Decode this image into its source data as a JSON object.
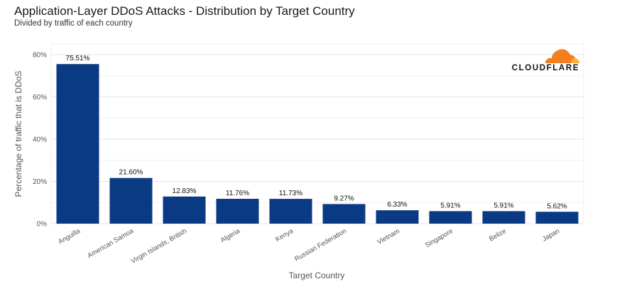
{
  "chart_data": {
    "type": "bar",
    "title": "Application-Layer DDoS Attacks - Distribution by Target Country",
    "subtitle": "Divided by traffic of each country",
    "xlabel": "Target Country",
    "ylabel": "Percentage of traffic that is DDoS",
    "ylim": [
      0,
      85
    ],
    "yticks": [
      0,
      20,
      40,
      60,
      80
    ],
    "ytick_labels": [
      "0%",
      "20%",
      "40%",
      "60%",
      "80%"
    ],
    "grid": true,
    "categories": [
      "Anguilla",
      "American Samoa",
      "Virgin Islands, British",
      "Algeria",
      "Kenya",
      "Russian Federation",
      "Vietnam",
      "Singapore",
      "Belize",
      "Japan"
    ],
    "values": [
      75.51,
      21.6,
      12.83,
      11.76,
      11.73,
      9.27,
      6.33,
      5.91,
      5.91,
      5.62
    ],
    "value_labels": [
      "75.51%",
      "21.60%",
      "12.83%",
      "11.76%",
      "11.73%",
      "9.27%",
      "6.33%",
      "5.91%",
      "5.91%",
      "5.62%"
    ],
    "bar_color": "#0b3a84"
  },
  "logo": {
    "name": "CLOUDFLARE",
    "cloud_color": "#f38020",
    "cloud_light_color": "#faad3f"
  }
}
